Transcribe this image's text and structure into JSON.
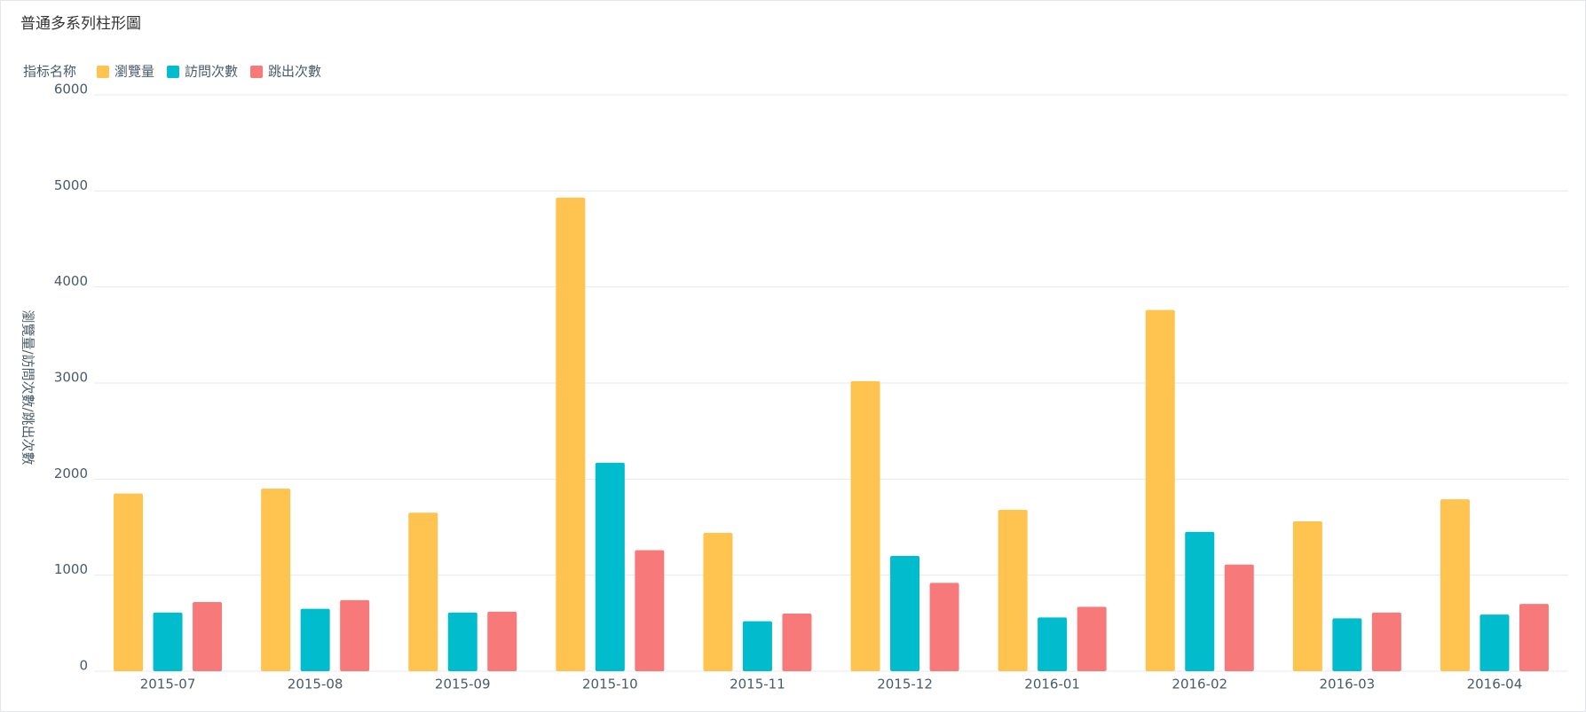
{
  "chart_data": {
    "type": "bar",
    "title": "普通多系列柱形圖",
    "legend_title": "指标名称",
    "y_label": "瀏覽量/訪問次數/跳出次數",
    "categories": [
      "2015-07",
      "2015-08",
      "2015-09",
      "2015-10",
      "2015-11",
      "2015-12",
      "2016-01",
      "2016-02",
      "2016-03",
      "2016-04"
    ],
    "series": [
      {
        "name": "瀏覽量",
        "color": "#ffc34f",
        "values": [
          1850,
          1900,
          1650,
          4930,
          1440,
          3020,
          1680,
          3760,
          1560,
          1790
        ]
      },
      {
        "name": "訪問次數",
        "color": "#00bccd",
        "values": [
          610,
          650,
          610,
          2170,
          520,
          1200,
          560,
          1450,
          550,
          590
        ]
      },
      {
        "name": "跳出次數",
        "color": "#f87979",
        "values": [
          720,
          740,
          620,
          1260,
          600,
          920,
          670,
          1110,
          610,
          700
        ]
      }
    ],
    "ylim": [
      0,
      6000
    ],
    "yticks": [
      0,
      1000,
      2000,
      3000,
      4000,
      5000,
      6000
    ],
    "grid": true
  }
}
